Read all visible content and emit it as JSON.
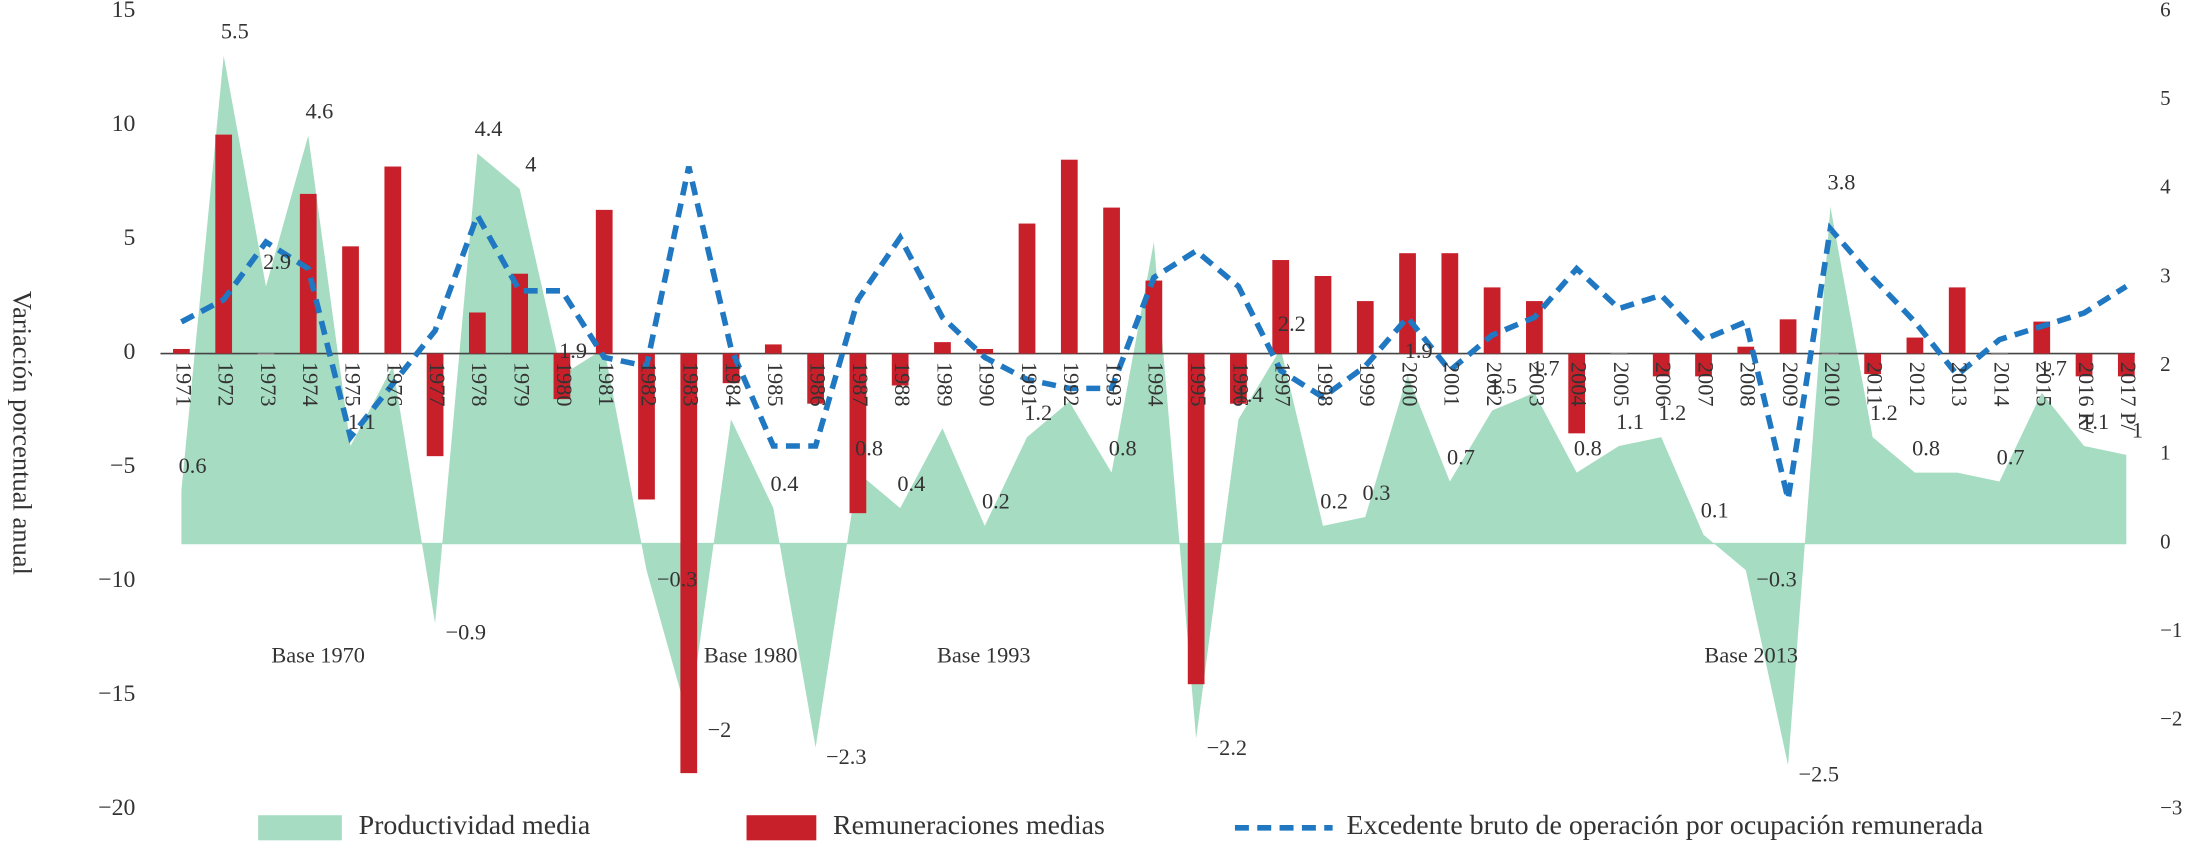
{
  "chart_data": {
    "type": "combo",
    "y_label": "Variación porcentual anual",
    "categories": [
      "1971",
      "1972",
      "1973",
      "1974",
      "1975",
      "1976",
      "1977",
      "1978",
      "1979",
      "1980",
      "1981",
      "1982",
      "1983",
      "1984",
      "1985",
      "1986",
      "1987",
      "1988",
      "1989",
      "1990",
      "1991",
      "1992",
      "1993",
      "1994",
      "1995",
      "1996",
      "1997",
      "1998",
      "1999",
      "2000",
      "2001",
      "2002",
      "2003",
      "2004",
      "2005",
      "2006",
      "2007",
      "2008",
      "2009",
      "2010",
      "2011",
      "2012",
      "2013",
      "2014",
      "2015",
      "2016 R/",
      "2017 P/"
    ],
    "ylim": [
      -20,
      15
    ],
    "yticks": [
      {
        "value": -20,
        "label": "−20"
      },
      {
        "value": -15,
        "label": "−15"
      },
      {
        "value": -10,
        "label": "−10"
      },
      {
        "value": -5,
        "label": "−5"
      },
      0,
      5,
      10,
      15
    ],
    "y2lim": [
      -3,
      6
    ],
    "y2ticks": [
      {
        "value": -3,
        "label": "−3"
      },
      {
        "value": -2,
        "label": "−2"
      },
      {
        "value": -1,
        "label": "−1"
      },
      0,
      1,
      2,
      3,
      4,
      5,
      6
    ],
    "annotations": [
      "Base 1970",
      "Base 1980",
      "Base 1993",
      "Base 2013"
    ],
    "series": [
      {
        "name": "Productividad media",
        "type": "area",
        "axis": "y2",
        "color": "#a6dcc2",
        "values": [
          0.6,
          5.5,
          2.9,
          4.6,
          1.1,
          2.0,
          -0.9,
          4.4,
          4,
          1.9,
          2.2,
          -0.3,
          -2,
          1.4,
          0.4,
          -2.3,
          0.8,
          0.4,
          1.3,
          0.2,
          1.2,
          1.6,
          0.8,
          3.4,
          -2.2,
          1.4,
          2.2,
          0.2,
          0.3,
          1.9,
          0.7,
          1.5,
          1.7,
          0.8,
          1.1,
          1.2,
          0.1,
          -0.3,
          -2.5,
          3.8,
          1.2,
          0.8,
          0.8,
          0.7,
          1.7,
          1.1,
          1
        ],
        "value_labels": [
          "0.6",
          "5.5",
          "2.9",
          "4.6",
          "1.1",
          null,
          "−0.9",
          "4.4",
          "4",
          "1.9",
          null,
          "−0.3",
          "−2",
          null,
          "0.4",
          "−2.3",
          "0.8",
          "0.4",
          null,
          "0.2",
          "1.2",
          null,
          "0.8",
          null,
          "−2.2",
          "1.4",
          "2.2",
          "0.2",
          "0.3",
          "1.9",
          "0.7",
          "1.5",
          "1.7",
          "0.8",
          "1.1",
          "1.2",
          "0.1",
          "−0.3",
          "−2.5",
          "3.8",
          "1.2",
          "0.8",
          null,
          "0.7",
          "1.7",
          "1.1",
          "1"
        ]
      },
      {
        "name": "Remuneraciones medias",
        "type": "bar",
        "color": "#c8202a",
        "values": [
          0.2,
          9.6,
          0,
          7.0,
          4.7,
          8.2,
          -4.5,
          1.8,
          3.5,
          -2.0,
          6.3,
          -6.4,
          -18.4,
          -1.3,
          0.4,
          -2.2,
          -7.0,
          -1.4,
          0.5,
          0.2,
          5.7,
          8.5,
          6.4,
          3.2,
          -14.5,
          -2.2,
          4.1,
          3.4,
          2.3,
          4.4,
          4.4,
          2.9,
          2.3,
          -3.5,
          0,
          -1.0,
          -1.0,
          0.3,
          1.5,
          0,
          -0.9,
          0.7,
          2.9,
          0,
          1.4,
          -1.0,
          -1.0
        ]
      },
      {
        "name": "Excedente bruto de operación por ocupación remunerada",
        "type": "line",
        "axis": "y2",
        "color": "#1f78c1",
        "values": [
          2.5,
          2.75,
          3.4,
          3.1,
          1.2,
          1.8,
          2.4,
          3.7,
          2.85,
          2.85,
          2.1,
          2.0,
          4.25,
          2.2,
          1.1,
          1.1,
          2.75,
          3.45,
          2.55,
          2.1,
          1.85,
          1.75,
          1.75,
          3.0,
          3.3,
          2.9,
          1.95,
          1.65,
          2.0,
          2.55,
          1.95,
          2.35,
          2.55,
          3.1,
          2.65,
          2.8,
          2.3,
          2.5,
          0.5,
          3.55,
          3.0,
          2.5,
          1.9,
          2.3,
          2.45,
          2.6,
          2.9
        ]
      }
    ]
  }
}
